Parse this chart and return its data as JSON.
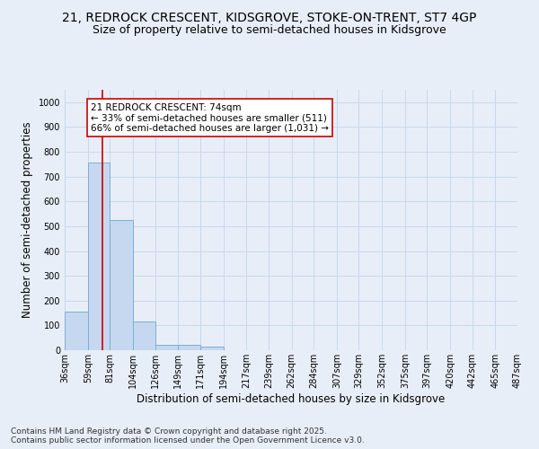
{
  "title_line1": "21, REDROCK CRESCENT, KIDSGROVE, STOKE-ON-TRENT, ST7 4GP",
  "title_line2": "Size of property relative to semi-detached houses in Kidsgrove",
  "xlabel": "Distribution of semi-detached houses by size in Kidsgrove",
  "ylabel": "Number of semi-detached properties",
  "bin_edges": [
    36,
    59,
    81,
    104,
    126,
    149,
    171,
    194,
    217,
    239,
    262,
    284,
    307,
    329,
    352,
    375,
    397,
    420,
    442,
    465,
    487
  ],
  "bar_heights": [
    155,
    755,
    525,
    117,
    22,
    20,
    13,
    0,
    0,
    0,
    0,
    0,
    0,
    0,
    0,
    0,
    0,
    0,
    0,
    0
  ],
  "bar_color": "#c5d8f0",
  "bar_edge_color": "#7bafd4",
  "property_size": 74,
  "vline_color": "#cc0000",
  "annotation_line1": "21 REDROCK CRESCENT: 74sqm",
  "annotation_line2": "← 33% of semi-detached houses are smaller (511)",
  "annotation_line3": "66% of semi-detached houses are larger (1,031) →",
  "annotation_box_color": "#ffffff",
  "annotation_box_edge": "#cc0000",
  "ylim": [
    0,
    1050
  ],
  "yticks": [
    0,
    100,
    200,
    300,
    400,
    500,
    600,
    700,
    800,
    900,
    1000
  ],
  "grid_color": "#c8d8ee",
  "bg_color": "#e8eef8",
  "footer_text": "Contains HM Land Registry data © Crown copyright and database right 2025.\nContains public sector information licensed under the Open Government Licence v3.0.",
  "title_fontsize": 10,
  "subtitle_fontsize": 9,
  "tick_fontsize": 7,
  "label_fontsize": 8.5,
  "footer_fontsize": 6.5
}
